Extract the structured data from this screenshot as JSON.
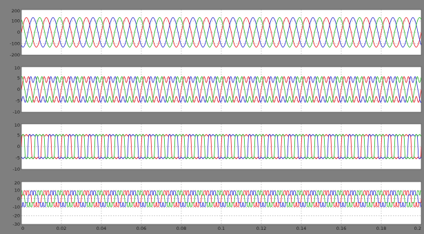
{
  "chart_data": [
    {
      "type": "line",
      "title": "",
      "xlabel": "",
      "ylabel": "",
      "xlim": [
        0,
        0.2
      ],
      "ylim": [
        -200,
        200
      ],
      "yticks": [
        "200",
        "100",
        "0",
        "-100",
        "-200"
      ],
      "grid": true,
      "frequency_hz": 100,
      "series": [
        {
          "color": "#e8141e",
          "amplitude": 130,
          "phase_deg": 0,
          "wave": "sine"
        },
        {
          "color": "#2424cc",
          "amplitude": 130,
          "phase_deg": -120,
          "wave": "sine"
        },
        {
          "color": "#22b422",
          "amplitude": 130,
          "phase_deg": 120,
          "wave": "sine"
        }
      ]
    },
    {
      "type": "line",
      "title": "",
      "xlabel": "",
      "ylabel": "",
      "xlim": [
        0,
        0.2
      ],
      "ylim": [
        -10,
        10
      ],
      "yticks": [
        "10",
        "5",
        "0",
        "-5",
        "-10"
      ],
      "grid": true,
      "frequency_hz": 100,
      "series": [
        {
          "color": "#e8141e",
          "amplitude": 6,
          "phase_deg": 0,
          "wave": "distorted"
        },
        {
          "color": "#2424cc",
          "amplitude": 6,
          "phase_deg": -120,
          "wave": "distorted"
        },
        {
          "color": "#22b422",
          "amplitude": 6,
          "phase_deg": 120,
          "wave": "distorted"
        }
      ]
    },
    {
      "type": "line",
      "title": "",
      "xlabel": "",
      "ylabel": "",
      "xlim": [
        0,
        0.2
      ],
      "ylim": [
        -10,
        10
      ],
      "yticks": [
        "10",
        "5",
        "0",
        "-5",
        "-10"
      ],
      "grid": true,
      "frequency_hz": 100,
      "series": [
        {
          "color": "#e8141e",
          "amplitude": 5,
          "phase_deg": 0,
          "wave": "square"
        },
        {
          "color": "#2424cc",
          "amplitude": 5,
          "phase_deg": -120,
          "wave": "square"
        },
        {
          "color": "#22b422",
          "amplitude": 5,
          "phase_deg": 120,
          "wave": "square"
        }
      ]
    },
    {
      "type": "line",
      "title": "",
      "xlabel": "",
      "ylabel": "",
      "xlim": [
        0,
        0.2
      ],
      "ylim": [
        -30,
        20
      ],
      "yticks": [
        "20",
        "10",
        "0",
        "-10",
        "-20",
        "-30"
      ],
      "xticks": [
        "0",
        "0.02",
        "0.04",
        "0.06",
        "0.08",
        "0.1",
        "0.12",
        "0.14",
        "0.16",
        "0.18",
        "0.2"
      ],
      "grid": true,
      "frequency_hz": 100,
      "series": [
        {
          "color": "#e8141e",
          "amplitude": 9,
          "phase_deg": 0,
          "wave": "stepped"
        },
        {
          "color": "#2424cc",
          "amplitude": 9,
          "phase_deg": -120,
          "wave": "stepped"
        },
        {
          "color": "#22b422",
          "amplitude": 9,
          "phase_deg": 120,
          "wave": "stepped"
        }
      ]
    }
  ]
}
